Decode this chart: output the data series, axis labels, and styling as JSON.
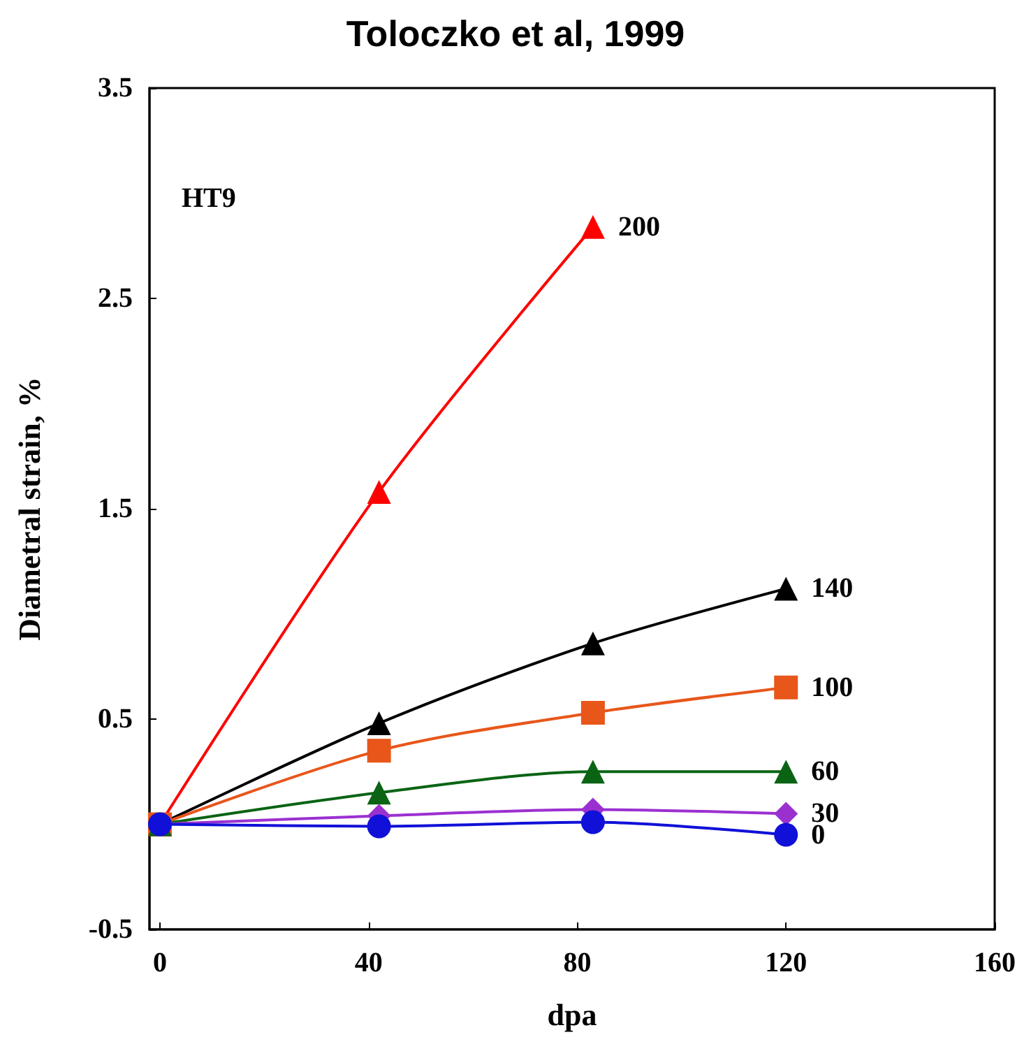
{
  "chart_data": {
    "type": "line",
    "title": "Toloczko et al, 1999",
    "xlabel": "dpa",
    "ylabel": "Diametral strain, %",
    "annotations": [
      "HT9"
    ],
    "xlim": [
      -2,
      160
    ],
    "xticks": [
      0,
      40,
      80,
      120,
      160
    ],
    "ylim": [
      -0.5,
      3.5
    ],
    "yticks": [
      -0.5,
      0.5,
      1.5,
      2.5,
      3.5
    ],
    "grid": false,
    "legend": false,
    "series": [
      {
        "name": "200",
        "color": "#ff0000",
        "marker": "triangle",
        "x": [
          0,
          42,
          83
        ],
        "values": [
          0,
          1.58,
          2.84
        ]
      },
      {
        "name": "140",
        "color": "#000000",
        "marker": "triangle",
        "x": [
          0,
          42,
          83,
          120
        ],
        "values": [
          0,
          0.48,
          0.86,
          1.12
        ]
      },
      {
        "name": "100",
        "color": "#e8561a",
        "marker": "square",
        "x": [
          0,
          42,
          83,
          120
        ],
        "values": [
          0,
          0.35,
          0.53,
          0.65
        ]
      },
      {
        "name": "60",
        "color": "#0a6414",
        "marker": "triangle",
        "x": [
          0,
          42,
          83,
          120
        ],
        "values": [
          0,
          0.15,
          0.25,
          0.25
        ]
      },
      {
        "name": "30",
        "color": "#9b30d0",
        "marker": "diamond",
        "x": [
          0,
          42,
          83,
          120
        ],
        "values": [
          0,
          0.04,
          0.07,
          0.05
        ]
      },
      {
        "name": "0",
        "color": "#1010d8",
        "marker": "circle",
        "x": [
          0,
          42,
          83,
          120
        ],
        "values": [
          0,
          -0.01,
          0.01,
          -0.05
        ]
      }
    ]
  }
}
